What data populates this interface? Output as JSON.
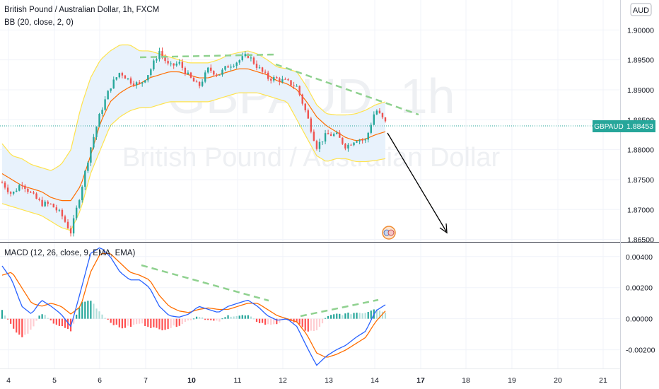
{
  "header": {
    "title": "British Pound / Australian Dollar, 1h, FXCM",
    "indicator": "BB (20, close, 2, 0)"
  },
  "watermark": {
    "symbol": "GBPAUD, 1h",
    "name": "British Pound / Australian Dollar"
  },
  "currency_badge": "AUD",
  "price_label": {
    "symbol": "GBPAUD",
    "value": "1.88453"
  },
  "macd_title": "MACD (12, 26, close, 9, EMA, EMA)",
  "colors": {
    "up": "#26a69a",
    "down": "#ef5350",
    "bb_band": "#ffe34d",
    "bb_basis": "#ff6d00",
    "bb_fill": "#e8f2fc",
    "macd_line": "#2962ff",
    "signal_line": "#ff6d00",
    "trendline": "#8fd18f",
    "price_line": "#26a69a"
  },
  "chart_data": [
    {
      "type": "candlestick",
      "title": "British Pound / Australian Dollar, 1h, FXCM",
      "indicator": "BB (20, close, 2, 0)",
      "y_ticks": [
        "1.90000",
        "1.89500",
        "1.89000",
        "1.88500",
        "1.88000",
        "1.87500",
        "1.87000",
        "1.86500"
      ],
      "ylim": [
        1.8646,
        1.905
      ],
      "x_ticks": [
        "4",
        "5",
        "6",
        "7",
        "10",
        "11",
        "12",
        "13",
        "14",
        "17",
        "18",
        "19",
        "20",
        "21"
      ],
      "last_price": 1.88453,
      "ohlc_anchors": [
        [
          1.8765,
          1.8745
        ],
        [
          1.8735,
          1.8725
        ],
        [
          1.876,
          1.8745
        ],
        [
          1.8725,
          1.8725
        ],
        [
          1.8715,
          1.871
        ],
        [
          1.8738,
          1.8708
        ],
        [
          1.8722,
          1.8692
        ],
        [
          1.8665,
          1.8662
        ],
        [
          1.8728,
          1.873
        ],
        [
          1.8805,
          1.8803
        ],
        [
          1.886,
          1.8862
        ],
        [
          1.8905,
          1.8905
        ],
        [
          1.8928,
          1.893
        ],
        [
          1.8915,
          1.8915
        ],
        [
          1.8905,
          1.8908
        ],
        [
          1.8928,
          1.893
        ],
        [
          1.8962,
          1.8965
        ],
        [
          1.8935,
          1.8938
        ],
        [
          1.8945,
          1.8945
        ],
        [
          1.892,
          1.8922
        ],
        [
          1.8905,
          1.8905
        ],
        [
          1.8935,
          1.8935
        ],
        [
          1.8925,
          1.8925
        ],
        [
          1.8938,
          1.894
        ],
        [
          1.8945,
          1.8948
        ],
        [
          1.8958,
          1.8958
        ],
        [
          1.8938,
          1.8938
        ],
        [
          1.892,
          1.892
        ],
        [
          1.8918,
          1.8918
        ],
        [
          1.8912,
          1.8913
        ],
        [
          1.8905,
          1.8905
        ],
        [
          1.8855,
          1.8858
        ],
        [
          1.8805,
          1.8805
        ],
        [
          1.8825,
          1.8825
        ],
        [
          1.8825,
          1.8825
        ],
        [
          1.8805,
          1.8805
        ],
        [
          1.8818,
          1.8818
        ],
        [
          1.8815,
          1.8815
        ],
        [
          1.8868,
          1.8868
        ],
        [
          1.885,
          1.8845
        ]
      ],
      "bb_upper": [
        1.881,
        1.879,
        1.8785,
        1.8775,
        1.877,
        1.8765,
        1.8775,
        1.88,
        1.887,
        1.892,
        1.895,
        1.8965,
        1.8975,
        1.8975,
        1.8965,
        1.8965,
        1.896,
        1.8955,
        1.895,
        1.8945,
        1.8945,
        1.8945,
        1.895,
        1.8958,
        1.8962,
        1.8965,
        1.896,
        1.895,
        1.8938,
        1.8935,
        1.893,
        1.8905,
        1.8875,
        1.886,
        1.8858,
        1.8858,
        1.886,
        1.8866,
        1.8875,
        1.888
      ],
      "bb_basis": [
        1.876,
        1.875,
        1.874,
        1.8735,
        1.873,
        1.872,
        1.8715,
        1.8715,
        1.874,
        1.879,
        1.8845,
        1.888,
        1.8895,
        1.8905,
        1.891,
        1.892,
        1.8925,
        1.893,
        1.893,
        1.8925,
        1.892,
        1.892,
        1.8925,
        1.893,
        1.8935,
        1.8935,
        1.893,
        1.8925,
        1.8915,
        1.891,
        1.89,
        1.888,
        1.8855,
        1.884,
        1.883,
        1.882,
        1.8815,
        1.8818,
        1.8825,
        1.883
      ],
      "bb_lower": [
        1.871,
        1.8705,
        1.87,
        1.8695,
        1.869,
        1.868,
        1.867,
        1.8665,
        1.87,
        1.876,
        1.88,
        1.884,
        1.8855,
        1.8865,
        1.887,
        1.887,
        1.8875,
        1.888,
        1.888,
        1.888,
        1.888,
        1.888,
        1.8885,
        1.889,
        1.8895,
        1.8895,
        1.8895,
        1.889,
        1.8885,
        1.888,
        1.885,
        1.882,
        1.879,
        1.878,
        1.8785,
        1.8785,
        1.878,
        1.878,
        1.8782,
        1.8785
      ]
    },
    {
      "type": "line",
      "title": "MACD (12, 26, close, 9, EMA, EMA)",
      "y_ticks": [
        "0.00400",
        "0.00200",
        "0.00000",
        "-0.00200"
      ],
      "ylim": [
        -0.0032,
        0.0049
      ],
      "macd": [
        0.0034,
        0.0025,
        0.0008,
        0.0003,
        0.0012,
        0.0008,
        0.0003,
        -0.0005,
        0.0018,
        0.0042,
        0.0046,
        0.004,
        0.003,
        0.0025,
        0.0025,
        0.002,
        0.0008,
        0.0002,
        0.0001,
        0.0003,
        0.0008,
        0.0006,
        0.0004,
        0.0008,
        0.001,
        0.0012,
        0.0008,
        0.0002,
        -0.0001,
        0.0,
        -0.0005,
        -0.0018,
        -0.003,
        -0.0024,
        -0.002,
        -0.0017,
        -0.0012,
        -0.0008,
        0.0005,
        0.0009
      ],
      "signal": [
        0.0028,
        0.003,
        0.002,
        0.001,
        0.0008,
        0.001,
        0.0008,
        0.0003,
        0.0008,
        0.003,
        0.0042,
        0.0042,
        0.0036,
        0.003,
        0.0028,
        0.0025,
        0.0015,
        0.0008,
        0.0005,
        0.0004,
        0.0006,
        0.0007,
        0.0006,
        0.0006,
        0.0008,
        0.001,
        0.001,
        0.0006,
        0.0002,
        0.0,
        -0.0002,
        -0.001,
        -0.0022,
        -0.0025,
        -0.0023,
        -0.002,
        -0.0016,
        -0.0012,
        -0.0002,
        0.0005
      ]
    }
  ]
}
